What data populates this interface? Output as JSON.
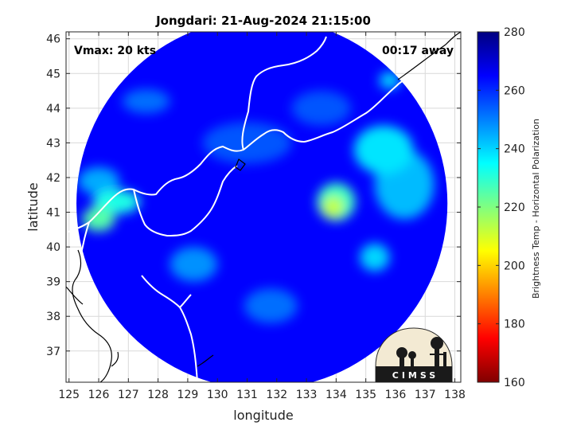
{
  "chart_data": {
    "type": "heatmap",
    "title": "Jongdari: 21-Aug-2024 21:15:00",
    "xlabel": "longitude",
    "ylabel": "latitude",
    "xlim": [
      124.9,
      138.2
    ],
    "ylim": [
      36.1,
      46.2
    ],
    "xticks": [
      125,
      126,
      127,
      128,
      129,
      130,
      131,
      132,
      133,
      134,
      135,
      136,
      137,
      138
    ],
    "yticks": [
      37,
      38,
      39,
      40,
      41,
      42,
      43,
      44,
      45,
      46
    ],
    "grid": true,
    "colorbar": {
      "label": "Brightness Temp - Horizontal Polarization",
      "range": [
        160,
        280
      ],
      "ticks": [
        160,
        180,
        200,
        220,
        240,
        260,
        280
      ],
      "colormap": "jet"
    },
    "annotations": {
      "vmax": "Vmax: 20 kts",
      "time_offset": "00:17 away"
    },
    "swath": {
      "center_lon": 131.5,
      "center_lat": 41.25,
      "radius_lon": 6.25,
      "radius_lat": 5.35
    },
    "background_value": 265,
    "features": [
      {
        "lon": 133.9,
        "lat": 41.15,
        "value": 212,
        "r_lon": 0.35,
        "r_lat": 0.3
      },
      {
        "lon": 134.0,
        "lat": 41.3,
        "value": 228,
        "r_lon": 0.65,
        "r_lat": 0.55
      },
      {
        "lon": 126.0,
        "lat": 40.8,
        "value": 225,
        "r_lon": 0.55,
        "r_lat": 0.35
      },
      {
        "lon": 126.6,
        "lat": 41.3,
        "value": 232,
        "r_lon": 0.8,
        "r_lat": 0.35
      },
      {
        "lon": 126.0,
        "lat": 41.9,
        "value": 245,
        "r_lon": 0.7,
        "r_lat": 0.4
      },
      {
        "lon": 135.6,
        "lat": 42.8,
        "value": 238,
        "r_lon": 1.0,
        "r_lat": 0.7
      },
      {
        "lon": 136.3,
        "lat": 41.8,
        "value": 243,
        "r_lon": 1.0,
        "r_lat": 1.0
      },
      {
        "lon": 135.3,
        "lat": 39.7,
        "value": 240,
        "r_lon": 0.5,
        "r_lat": 0.4
      },
      {
        "lon": 135.8,
        "lat": 44.8,
        "value": 240,
        "r_lon": 0.35,
        "r_lat": 0.25
      },
      {
        "lon": 129.2,
        "lat": 39.5,
        "value": 248,
        "r_lon": 0.8,
        "r_lat": 0.5
      },
      {
        "lon": 131.8,
        "lat": 38.3,
        "value": 252,
        "r_lon": 0.9,
        "r_lat": 0.5
      },
      {
        "lon": 127.6,
        "lat": 44.2,
        "value": 252,
        "r_lon": 0.8,
        "r_lat": 0.35
      },
      {
        "lon": 131.0,
        "lat": 43.0,
        "value": 255,
        "r_lon": 1.5,
        "r_lat": 0.6
      },
      {
        "lon": 133.5,
        "lat": 44.0,
        "value": 255,
        "r_lon": 1.0,
        "r_lat": 0.5
      }
    ]
  },
  "logo": {
    "text": "CIMSS"
  }
}
